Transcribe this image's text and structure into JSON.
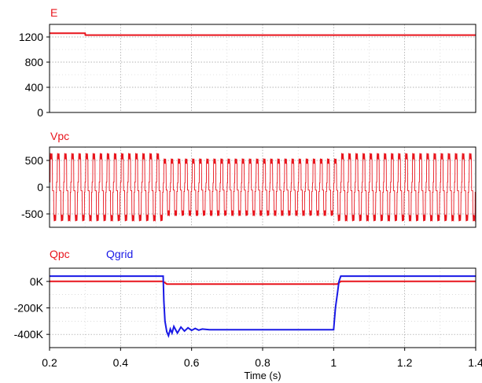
{
  "chart_data": [
    {
      "type": "line",
      "xlim": [
        0.2,
        1.4
      ],
      "ylim": [
        0,
        1400
      ],
      "yticks": [
        {
          "v": 0,
          "label": "0"
        },
        {
          "v": 400,
          "label": "400"
        },
        {
          "v": 800,
          "label": "800"
        },
        {
          "v": 1200,
          "label": "1200"
        }
      ],
      "grid": true,
      "series": [
        {
          "name": "E",
          "color": "#e8141c",
          "style": "flat",
          "x": [
            0.2,
            0.3,
            0.301,
            1.4
          ],
          "y": [
            1260,
            1260,
            1230,
            1230
          ]
        }
      ]
    },
    {
      "type": "line",
      "xlim": [
        0.2,
        1.4
      ],
      "ylim": [
        -750,
        750
      ],
      "yticks": [
        {
          "v": -500,
          "label": "-500"
        },
        {
          "v": 0,
          "label": "0"
        },
        {
          "v": 500,
          "label": "500"
        }
      ],
      "grid": true,
      "series": [
        {
          "name": "Vpc",
          "color": "#e8141c",
          "style": "square",
          "frequency_hz": 50,
          "amplitude_segments": [
            {
              "from": 0.2,
              "to": 0.52,
              "amplitude": 640
            },
            {
              "from": 0.52,
              "to": 1.01,
              "amplitude": 540
            },
            {
              "from": 1.01,
              "to": 1.4,
              "amplitude": 640
            }
          ]
        }
      ]
    },
    {
      "type": "line",
      "xlim": [
        0.2,
        1.4
      ],
      "ylim": [
        -500000,
        100000
      ],
      "yticks": [
        {
          "v": -400000,
          "label": "-400K"
        },
        {
          "v": -200000,
          "label": "-200K"
        },
        {
          "v": 0,
          "label": "0K"
        }
      ],
      "grid": true,
      "xticks": [
        {
          "v": 0.2,
          "label": "0.2"
        },
        {
          "v": 0.4,
          "label": "0.4"
        },
        {
          "v": 0.6,
          "label": "0.6"
        },
        {
          "v": 0.8,
          "label": "0.8"
        },
        {
          "v": 1.0,
          "label": "1"
        },
        {
          "v": 1.2,
          "label": "1.2"
        },
        {
          "v": 1.4,
          "label": "1.4"
        }
      ],
      "xlabel": "Time (s)",
      "series": [
        {
          "name": "Qpc",
          "color": "#e8141c",
          "style": "flat",
          "x": [
            0.2,
            0.52,
            0.53,
            1.01,
            1.02,
            1.4
          ],
          "y": [
            0,
            0,
            -20000,
            -20000,
            0,
            0
          ]
        },
        {
          "name": "Qgrid",
          "color": "#1919e6",
          "style": "flat",
          "x": [
            0.2,
            0.52,
            0.522,
            0.525,
            0.53,
            0.535,
            0.54,
            0.545,
            0.55,
            0.56,
            0.57,
            0.58,
            0.59,
            0.6,
            0.61,
            0.62,
            0.63,
            0.65,
            0.7,
            1.0,
            1.002,
            1.005,
            1.01,
            1.015,
            1.02,
            1.4
          ],
          "y": [
            40000,
            40000,
            -150000,
            -300000,
            -380000,
            -410000,
            -360000,
            -390000,
            -340000,
            -390000,
            -345000,
            -375000,
            -350000,
            -370000,
            -355000,
            -368000,
            -360000,
            -365000,
            -365000,
            -365000,
            -300000,
            -200000,
            -100000,
            0,
            40000,
            40000
          ]
        }
      ]
    }
  ]
}
